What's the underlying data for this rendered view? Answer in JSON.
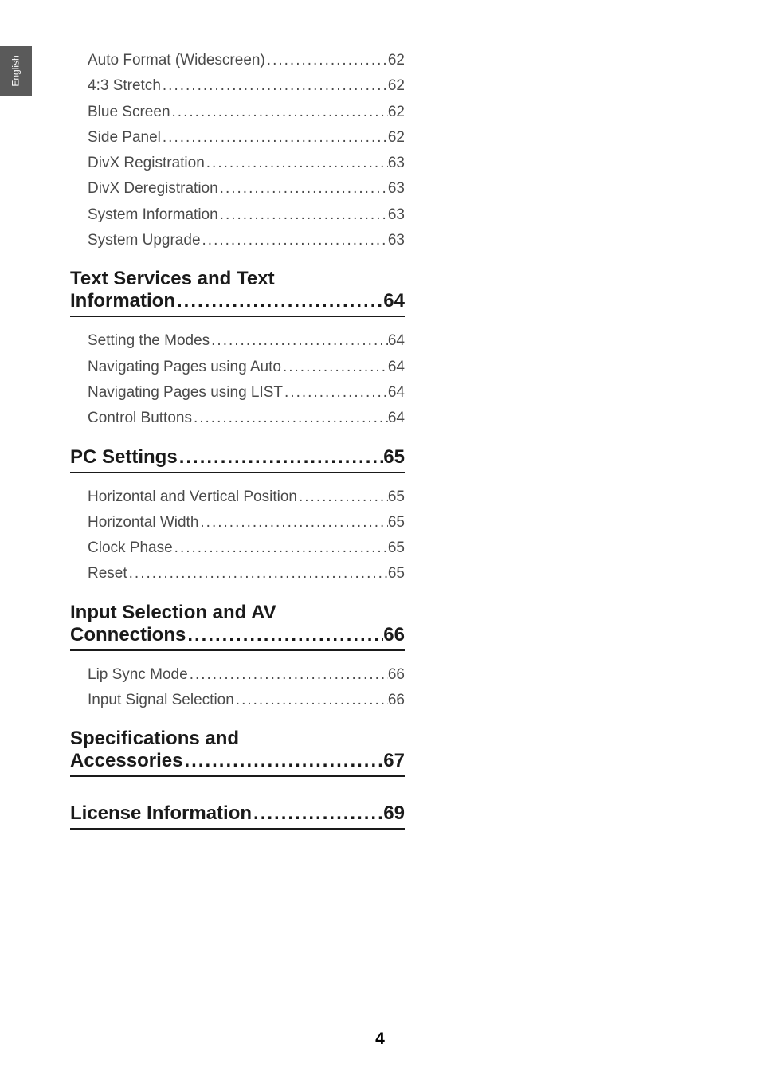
{
  "sidebar": {
    "label": "English"
  },
  "pageNumber": "4",
  "toc": {
    "block1": [
      {
        "label": "Auto Format (Widescreen)",
        "page": "62"
      },
      {
        "label": "4:3 Stretch",
        "page": "62"
      },
      {
        "label": "Blue Screen",
        "page": "62"
      },
      {
        "label": "Side Panel",
        "page": "62"
      },
      {
        "label": "DivX Registration",
        "page": "63"
      },
      {
        "label": "DivX Deregistration",
        "page": "63"
      },
      {
        "label": "System Information",
        "page": "63"
      },
      {
        "label": "System Upgrade",
        "page": "63"
      }
    ],
    "heading1": {
      "line1": "Text Services and Text",
      "line2": "Information",
      "page": "64"
    },
    "block2": [
      {
        "label": "Setting the Modes",
        "page": "64"
      },
      {
        "label": "Navigating Pages using Auto",
        "page": "64"
      },
      {
        "label": "Navigating Pages using LIST",
        "page": "64"
      },
      {
        "label": "Control Buttons",
        "page": "64"
      }
    ],
    "heading2": {
      "label": "PC Settings",
      "page": "65"
    },
    "block3": [
      {
        "label": "Horizontal and Vertical Position",
        "page": "65"
      },
      {
        "label": "Horizontal Width",
        "page": "65"
      },
      {
        "label": "Clock Phase",
        "page": "65"
      },
      {
        "label": "Reset",
        "page": "65"
      }
    ],
    "heading3": {
      "line1": "Input Selection and AV",
      "line2": "Connections",
      "page": "66"
    },
    "block4": [
      {
        "label": "Lip Sync Mode",
        "page": "66"
      },
      {
        "label": "Input Signal Selection",
        "page": "66"
      }
    ],
    "heading4": {
      "line1": "Specifications and",
      "line2": "Accessories",
      "page": "67"
    },
    "heading5": {
      "label": "License Information",
      "page": "69"
    }
  }
}
